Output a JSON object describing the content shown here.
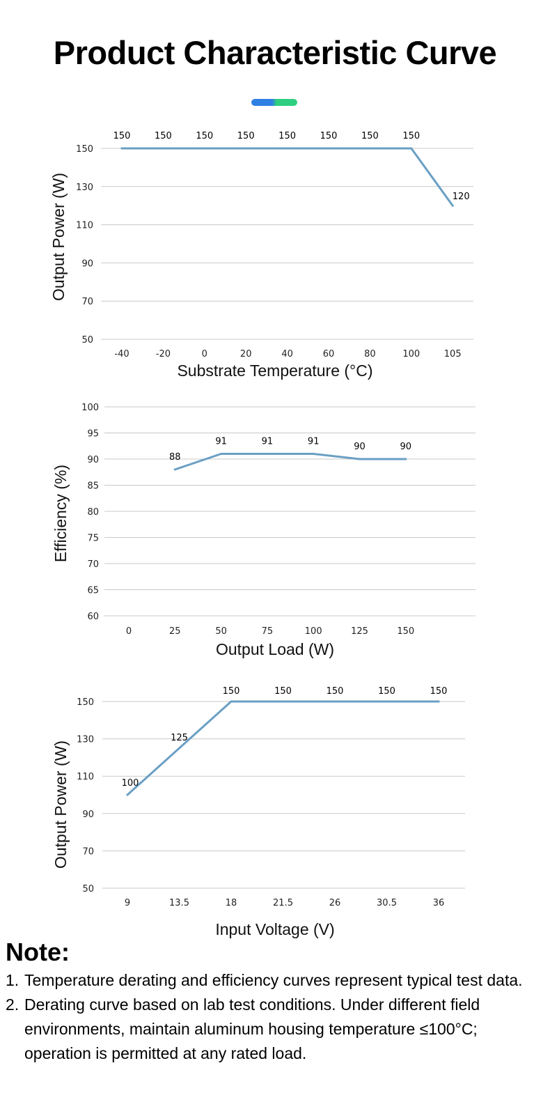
{
  "page": {
    "title": "Product Characteristic Curve"
  },
  "charts": [
    {
      "xlabel": "Substrate Temperature (°C)",
      "ylabel": "Output Power (W)",
      "yticks": [
        "150",
        "130",
        "110",
        "90",
        "70",
        "50"
      ],
      "xticks": [
        "-40",
        "-20",
        "0",
        "20",
        "40",
        "60",
        "80",
        "100",
        "105"
      ]
    },
    {
      "xlabel": "Output Load (W)",
      "ylabel": "Efficiency (%)",
      "yticks": [
        "100",
        "95",
        "90",
        "85",
        "80",
        "75",
        "70",
        "65",
        "60"
      ],
      "xticks": [
        "0",
        "25",
        "50",
        "75",
        "100",
        "125",
        "150"
      ]
    },
    {
      "xlabel": "Input Voltage (V)",
      "ylabel": "Output Power (W)",
      "yticks": [
        "150",
        "130",
        "110",
        "90",
        "70",
        "50"
      ],
      "xticks": [
        "9",
        "13.5",
        "18",
        "21.5",
        "26",
        "30.5",
        "36"
      ]
    }
  ],
  "chart_data": [
    {
      "type": "line",
      "title": "",
      "xlabel": "Substrate Temperature (°C)",
      "ylabel": "Output Power (W)",
      "categories": [
        "-40",
        "-20",
        "0",
        "20",
        "40",
        "60",
        "80",
        "100",
        "105"
      ],
      "x": [
        -40,
        -20,
        0,
        20,
        40,
        60,
        80,
        100,
        105
      ],
      "values": [
        150,
        150,
        150,
        150,
        150,
        150,
        150,
        150,
        120
      ],
      "data_labels": [
        "150",
        "150",
        "150",
        "150",
        "150",
        "150",
        "150",
        "150",
        "120"
      ],
      "ylim": [
        50,
        150
      ],
      "yticks": [
        150,
        130,
        110,
        90,
        70,
        50
      ],
      "grid": true,
      "color": "#6a9fc4"
    },
    {
      "type": "line",
      "title": "",
      "xlabel": "Output Load (W)",
      "ylabel": "Efficiency (%)",
      "categories": [
        "0",
        "25",
        "50",
        "75",
        "100",
        "125",
        "150"
      ],
      "x": [
        25,
        50,
        75,
        100,
        125,
        150
      ],
      "values": [
        88,
        91,
        91,
        91,
        90,
        90
      ],
      "data_labels": [
        "88",
        "91",
        "91",
        "91",
        "90",
        "90"
      ],
      "ylim": [
        60,
        100
      ],
      "yticks": [
        100,
        95,
        90,
        85,
        80,
        75,
        70,
        65,
        60
      ],
      "grid": true,
      "color": "#6a9fc4"
    },
    {
      "type": "line",
      "title": "",
      "xlabel": "Input Voltage (V)",
      "ylabel": "Output Power (W)",
      "categories": [
        "9",
        "13.5",
        "18",
        "21.5",
        "26",
        "30.5",
        "36"
      ],
      "x": [
        9,
        13.5,
        18,
        21.5,
        26,
        30.5,
        36
      ],
      "values": [
        100,
        125,
        150,
        150,
        150,
        150,
        150
      ],
      "data_labels": [
        "100",
        "125",
        "150",
        "150",
        "150",
        "150",
        "150"
      ],
      "ylim": [
        50,
        150
      ],
      "yticks": [
        150,
        130,
        110,
        90,
        70,
        50
      ],
      "grid": true,
      "color": "#6a9fc4"
    }
  ],
  "notes": {
    "title": "Note:",
    "items": [
      {
        "num": "1.",
        "text": "Temperature derating and efficiency curves represent typical test data."
      },
      {
        "num": "2.",
        "text": "Derating curve based on lab test conditions. Under different field environments, maintain aluminum housing temperature ≤100°C; operation is permitted at any rated load."
      }
    ]
  }
}
